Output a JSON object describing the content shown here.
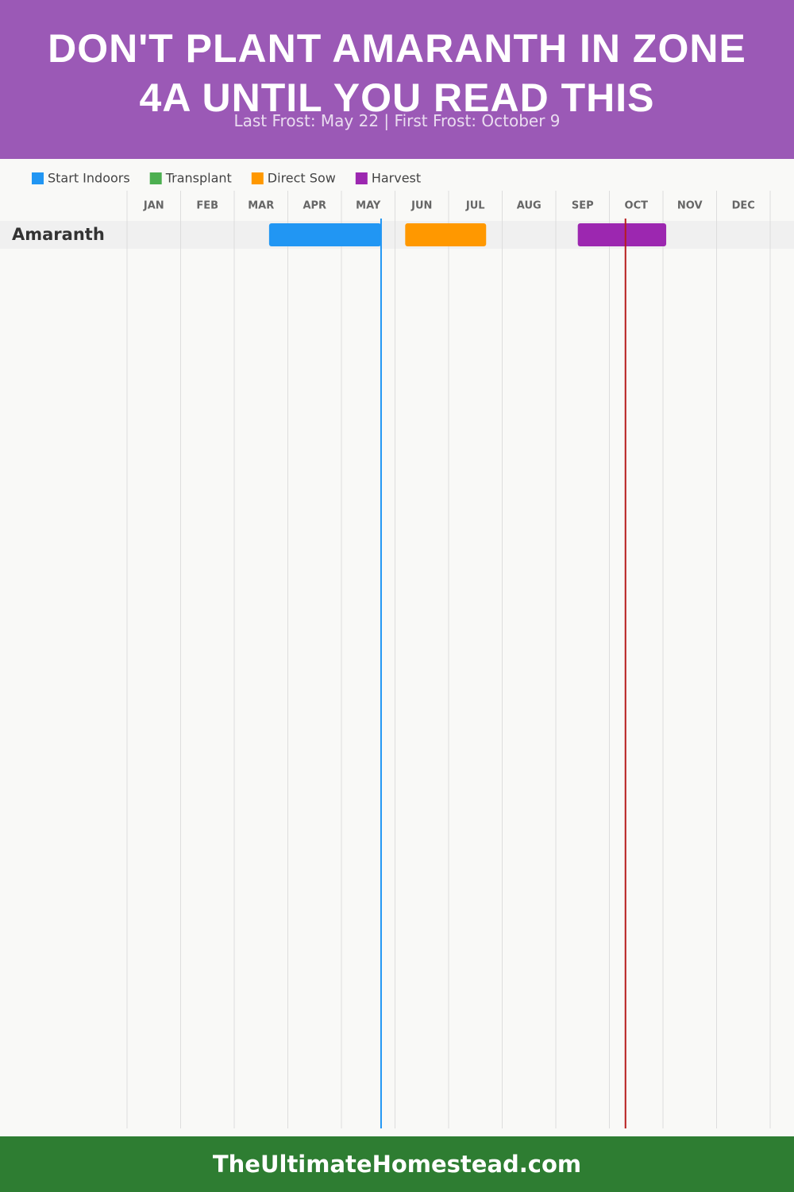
{
  "chart_data": {
    "type": "gantt",
    "title": "DON'T PLANT AMARANTH IN ZONE 4A UNTIL YOU READ THIS",
    "subtitle": "Last Frost: May 22 | First Frost: October 9",
    "categories": [
      "Amaranth"
    ],
    "xlim": [
      0,
      12
    ],
    "xticks": [
      {
        "value": 0,
        "label": "JAN"
      },
      {
        "value": 1,
        "label": "FEB"
      },
      {
        "value": 2,
        "label": "MAR"
      },
      {
        "value": 3,
        "label": "APR"
      },
      {
        "value": 4,
        "label": "MAY"
      },
      {
        "value": 5,
        "label": "JUN"
      },
      {
        "value": 6,
        "label": "JUL"
      },
      {
        "value": 7,
        "label": "AUG"
      },
      {
        "value": 8,
        "label": "SEP"
      },
      {
        "value": 9,
        "label": "OCT"
      },
      {
        "value": 10,
        "label": "NOV"
      },
      {
        "value": 11,
        "label": "DEC"
      }
    ],
    "grid": true,
    "series": [
      {
        "name": "Start Indoors",
        "color": "#2196f3",
        "start": [
          2.65
        ],
        "end": [
          4.74
        ]
      },
      {
        "name": "Transplant",
        "color": "#4caf50",
        "start": [
          null
        ],
        "end": [
          null
        ]
      },
      {
        "name": "Direct Sow",
        "color": "#ff9800",
        "start": [
          5.19
        ],
        "end": [
          6.7
        ]
      },
      {
        "name": "Harvest",
        "color": "#9c27b0",
        "start": [
          8.41
        ],
        "end": [
          10.06
        ]
      }
    ],
    "reference_lines": [
      {
        "value": 4.74,
        "color": "#2196f3"
      },
      {
        "value": 9.3,
        "color": "#b71c1c"
      }
    ],
    "footer": "TheUltimateHomestead.com"
  }
}
